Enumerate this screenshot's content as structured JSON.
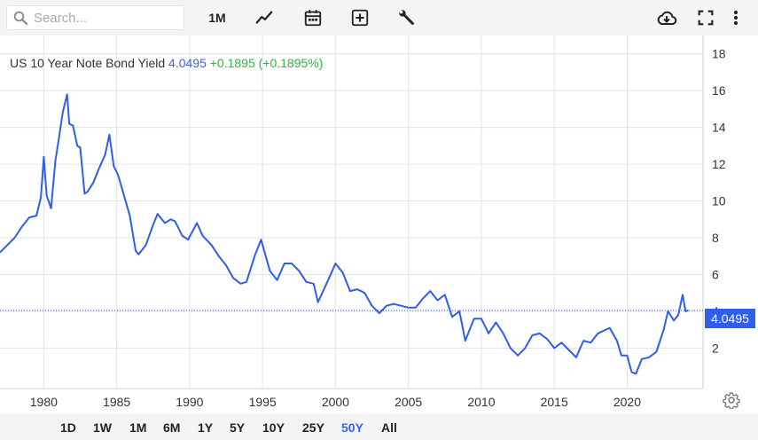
{
  "toolbar": {
    "search_placeholder": "Search...",
    "period_label": "1M",
    "icons": [
      "search-icon",
      "line-chart-icon",
      "calendar-icon",
      "add-box-icon",
      "wrench-icon",
      "cloud-download-icon",
      "fullscreen-icon",
      "more-vert-icon"
    ]
  },
  "header": {
    "name": "US 10 Year Note Bond Yield",
    "value": "4.0495",
    "change": "+0.1895 (+0.1895%)"
  },
  "price_tag": "4.0495",
  "colors": {
    "line": "#2f5ee8",
    "up": "#2fb344",
    "tag": "#2f5ee8",
    "grid": "#e3e3e3"
  },
  "chart_data": {
    "type": "line",
    "series": [
      {
        "x": [
          1977.0,
          1977.5,
          1978.0,
          1978.5,
          1979.0,
          1979.5,
          1979.8,
          1980.0,
          1980.2,
          1980.5,
          1980.8,
          1981.0,
          1981.3,
          1981.6,
          1981.75,
          1982.0,
          1982.3,
          1982.5,
          1982.8,
          1983.0,
          1983.4,
          1983.8,
          1984.2,
          1984.5,
          1984.8,
          1985.1,
          1985.5,
          1985.9,
          1986.3,
          1986.5,
          1987.0,
          1987.5,
          1987.8,
          1988.3,
          1988.7,
          1989.0,
          1989.5,
          1989.9,
          1990.5,
          1990.9,
          1991.5,
          1992.0,
          1992.5,
          1993.0,
          1993.5,
          1993.9,
          1994.5,
          1994.9,
          1995.5,
          1996.0,
          1996.5,
          1997.0,
          1997.5,
          1998.0,
          1998.5,
          1998.8,
          1999.5,
          2000.0,
          2000.5,
          2001.0,
          2001.5,
          2002.0,
          2002.5,
          2003.0,
          2003.5,
          2004.0,
          2004.5,
          2005.0,
          2005.5,
          2006.0,
          2006.5,
          2007.0,
          2007.5,
          2008.0,
          2008.5,
          2008.9,
          2009.5,
          2010.0,
          2010.5,
          2011.0,
          2011.5,
          2012.0,
          2012.5,
          2013.0,
          2013.5,
          2014.0,
          2014.5,
          2015.0,
          2015.5,
          2016.0,
          2016.5,
          2017.0,
          2017.5,
          2018.0,
          2018.8,
          2019.3,
          2019.6,
          2020.0,
          2020.3,
          2020.6,
          2021.0,
          2021.5,
          2022.0,
          2022.5,
          2022.8,
          2023.2,
          2023.5,
          2023.8,
          2024.0,
          2024.2
        ],
        "y": [
          7.2,
          7.6,
          8.0,
          8.6,
          9.1,
          9.2,
          10.2,
          12.4,
          10.3,
          9.6,
          12.2,
          13.2,
          14.8,
          15.8,
          14.2,
          14.1,
          13.0,
          12.9,
          10.4,
          10.5,
          11.0,
          11.8,
          12.5,
          13.6,
          11.9,
          11.4,
          10.3,
          9.2,
          7.3,
          7.1,
          7.6,
          8.7,
          9.3,
          8.8,
          9.0,
          8.9,
          8.1,
          7.9,
          8.8,
          8.1,
          7.6,
          7.0,
          6.5,
          5.8,
          5.5,
          5.6,
          7.1,
          7.9,
          6.2,
          5.7,
          6.6,
          6.6,
          6.2,
          5.6,
          5.5,
          4.5,
          5.7,
          6.6,
          6.1,
          5.1,
          5.2,
          5.0,
          4.3,
          3.9,
          4.3,
          4.4,
          4.3,
          4.2,
          4.2,
          4.7,
          5.1,
          4.6,
          4.9,
          3.7,
          4.0,
          2.4,
          3.6,
          3.6,
          2.8,
          3.4,
          2.8,
          2.0,
          1.6,
          2.0,
          2.7,
          2.8,
          2.5,
          2.0,
          2.3,
          1.9,
          1.5,
          2.4,
          2.3,
          2.8,
          3.1,
          2.4,
          1.6,
          1.6,
          0.7,
          0.6,
          1.4,
          1.5,
          1.8,
          3.0,
          4.0,
          3.5,
          3.8,
          4.9,
          4.0,
          4.05
        ]
      }
    ],
    "x_ticks": [
      "1980",
      "1985",
      "1990",
      "1995",
      "2000",
      "2005",
      "2010",
      "2015",
      "2020"
    ],
    "y_ticks": [
      "2",
      "4",
      "6",
      "8",
      "10",
      "12",
      "14",
      "16",
      "18"
    ],
    "xlim": [
      1977,
      2025.2
    ],
    "ylim": [
      -0.2,
      19.0
    ],
    "current_value": 4.0495,
    "grid": true
  },
  "ranges": {
    "items": [
      "1D",
      "1W",
      "1M",
      "6M",
      "1Y",
      "5Y",
      "10Y",
      "25Y",
      "50Y",
      "All"
    ],
    "active": "50Y"
  }
}
